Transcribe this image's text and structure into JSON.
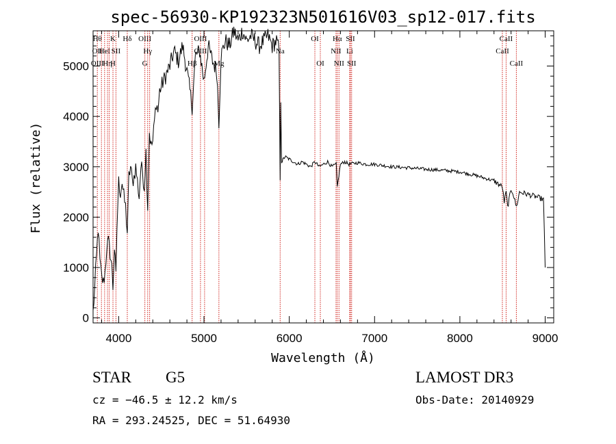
{
  "chart_data": {
    "type": "line",
    "title": "spec-56930-KP192323N501616V03_sp12-017.fits",
    "xlabel": "Wavelength (Å)",
    "ylabel": "Flux (relative)",
    "xlim": [
      3700,
      9100
    ],
    "ylim": [
      -100,
      5700
    ],
    "x_ticks": [
      4000,
      5000,
      6000,
      7000,
      8000,
      9000
    ],
    "y_ticks": [
      0,
      1000,
      2000,
      3000,
      4000,
      5000
    ],
    "grid": false,
    "series": [
      {
        "x": [
          3700,
          3720,
          3740,
          3760,
          3780,
          3800,
          3820,
          3840,
          3860,
          3880,
          3900,
          3920,
          3933,
          3950,
          3968,
          3980,
          4000,
          4020,
          4040,
          4060,
          4080,
          4101,
          4120,
          4140,
          4160,
          4180,
          4200,
          4220,
          4240,
          4260,
          4280,
          4300,
          4320,
          4340,
          4360,
          4380,
          4400,
          4420,
          4440,
          4460,
          4480,
          4500,
          4550,
          4600,
          4650,
          4700,
          4750,
          4800,
          4861,
          4900,
          4950,
          5000,
          5050,
          5100,
          5150,
          5175,
          5200,
          5250,
          5300,
          5350,
          5400,
          5450,
          5500,
          5550,
          5600,
          5650,
          5700,
          5750,
          5800,
          5850,
          5880,
          5893,
          5900,
          5910,
          5950,
          6000,
          6050,
          6100,
          6150,
          6200,
          6250,
          6300,
          6350,
          6400,
          6450,
          6500,
          6550,
          6563,
          6600,
          6650,
          6700,
          6800,
          6900,
          7000,
          7200,
          7400,
          7600,
          7800,
          8000,
          8200,
          8400,
          8498,
          8520,
          8542,
          8560,
          8600,
          8620,
          8662,
          8700,
          8800,
          8900,
          8980,
          9000
        ],
        "y": [
          100,
          600,
          1200,
          1800,
          1100,
          800,
          700,
          900,
          1400,
          1500,
          1300,
          1000,
          600,
          1400,
          800,
          1800,
          2700,
          2500,
          2700,
          2400,
          2200,
          1700,
          2800,
          3000,
          2700,
          2800,
          3000,
          2700,
          2400,
          3000,
          2900,
          2600,
          3300,
          2200,
          3700,
          3400,
          3500,
          3900,
          4300,
          4100,
          4500,
          4600,
          4800,
          5000,
          5300,
          5100,
          5400,
          4900,
          4200,
          5200,
          5300,
          4700,
          5400,
          5100,
          4900,
          3900,
          5200,
          5500,
          5400,
          5700,
          5500,
          5700,
          5500,
          5600,
          5500,
          5400,
          5500,
          5600,
          5400,
          5500,
          5300,
          2600,
          4300,
          3100,
          3200,
          3150,
          3100,
          3050,
          3100,
          3050,
          3000,
          3100,
          3000,
          3050,
          3100,
          3000,
          3050,
          2600,
          3050,
          3100,
          3050,
          3080,
          3050,
          3050,
          3000,
          2980,
          2950,
          2930,
          2900,
          2820,
          2720,
          2600,
          2300,
          2500,
          2200,
          2550,
          2500,
          2200,
          2500,
          2450,
          2400,
          2350,
          1000
        ]
      }
    ],
    "lines": [
      {
        "x": 3750,
        "labels": [
          {
            "text": "Hθ",
            "row": 0
          },
          {
            "text": "OII",
            "row": 1
          },
          {
            "text": "OIII",
            "row": 2
          }
        ]
      },
      {
        "x": 3798,
        "labels": []
      },
      {
        "x": 3835,
        "labels": [
          {
            "text": "HeI",
            "row": 1
          }
        ]
      },
      {
        "x": 3869,
        "labels": [
          {
            "text": "Hη",
            "row": 2
          }
        ]
      },
      {
        "x": 3889,
        "labels": []
      },
      {
        "x": 3933,
        "labels": [
          {
            "text": "K",
            "row": 0
          },
          {
            "text": "H",
            "row": 2
          }
        ]
      },
      {
        "x": 3968,
        "labels": [
          {
            "text": "SII",
            "row": 1
          }
        ]
      },
      {
        "x": 4101,
        "labels": [
          {
            "text": "Hδ",
            "row": 0
          }
        ]
      },
      {
        "x": 4307,
        "labels": [
          {
            "text": "OIII",
            "row": 0
          },
          {
            "text": "G",
            "row": 2
          }
        ]
      },
      {
        "x": 4340,
        "labels": [
          {
            "text": "Hγ",
            "row": 1
          }
        ]
      },
      {
        "x": 4363,
        "labels": []
      },
      {
        "x": 4861,
        "labels": [
          {
            "text": "Hβ",
            "row": 2
          }
        ]
      },
      {
        "x": 4959,
        "labels": [
          {
            "text": "OIII",
            "row": 0
          },
          {
            "text": "OIII",
            "row": 1
          }
        ]
      },
      {
        "x": 5007,
        "labels": []
      },
      {
        "x": 5175,
        "labels": [
          {
            "text": "Mg",
            "row": 2
          }
        ]
      },
      {
        "x": 5893,
        "labels": [
          {
            "text": "Na",
            "row": 1
          }
        ]
      },
      {
        "x": 6300,
        "labels": [
          {
            "text": "OI",
            "row": 0
          }
        ]
      },
      {
        "x": 6364,
        "labels": [
          {
            "text": "OI",
            "row": 2
          }
        ]
      },
      {
        "x": 6548,
        "labels": [
          {
            "text": "NII",
            "row": 1
          }
        ]
      },
      {
        "x": 6563,
        "labels": [
          {
            "text": "Hα",
            "row": 0
          }
        ]
      },
      {
        "x": 6583,
        "labels": [
          {
            "text": "NII",
            "row": 2
          }
        ]
      },
      {
        "x": 6708,
        "labels": [
          {
            "text": "Li",
            "row": 1
          }
        ]
      },
      {
        "x": 6717,
        "labels": [
          {
            "text": "SII",
            "row": 0
          }
        ]
      },
      {
        "x": 6731,
        "labels": [
          {
            "text": "SII",
            "row": 2
          }
        ]
      },
      {
        "x": 8498,
        "labels": [
          {
            "text": "CaII",
            "row": 1
          }
        ]
      },
      {
        "x": 8542,
        "labels": [
          {
            "text": "CaII",
            "row": 0
          }
        ]
      },
      {
        "x": 8662,
        "labels": [
          {
            "text": "CaII",
            "row": 2
          }
        ]
      }
    ],
    "colors": {
      "spectrum": "#000000",
      "lines": "#d0201a"
    }
  },
  "info": {
    "object_class": "STAR",
    "subclass": "G5",
    "survey": "LAMOST DR3",
    "redshift": "cz = −46.5 ± 12.2 km/s",
    "obs_date": "Obs-Date: 20140929",
    "coords": "RA = 293.24525, DEC =  51.64930"
  }
}
